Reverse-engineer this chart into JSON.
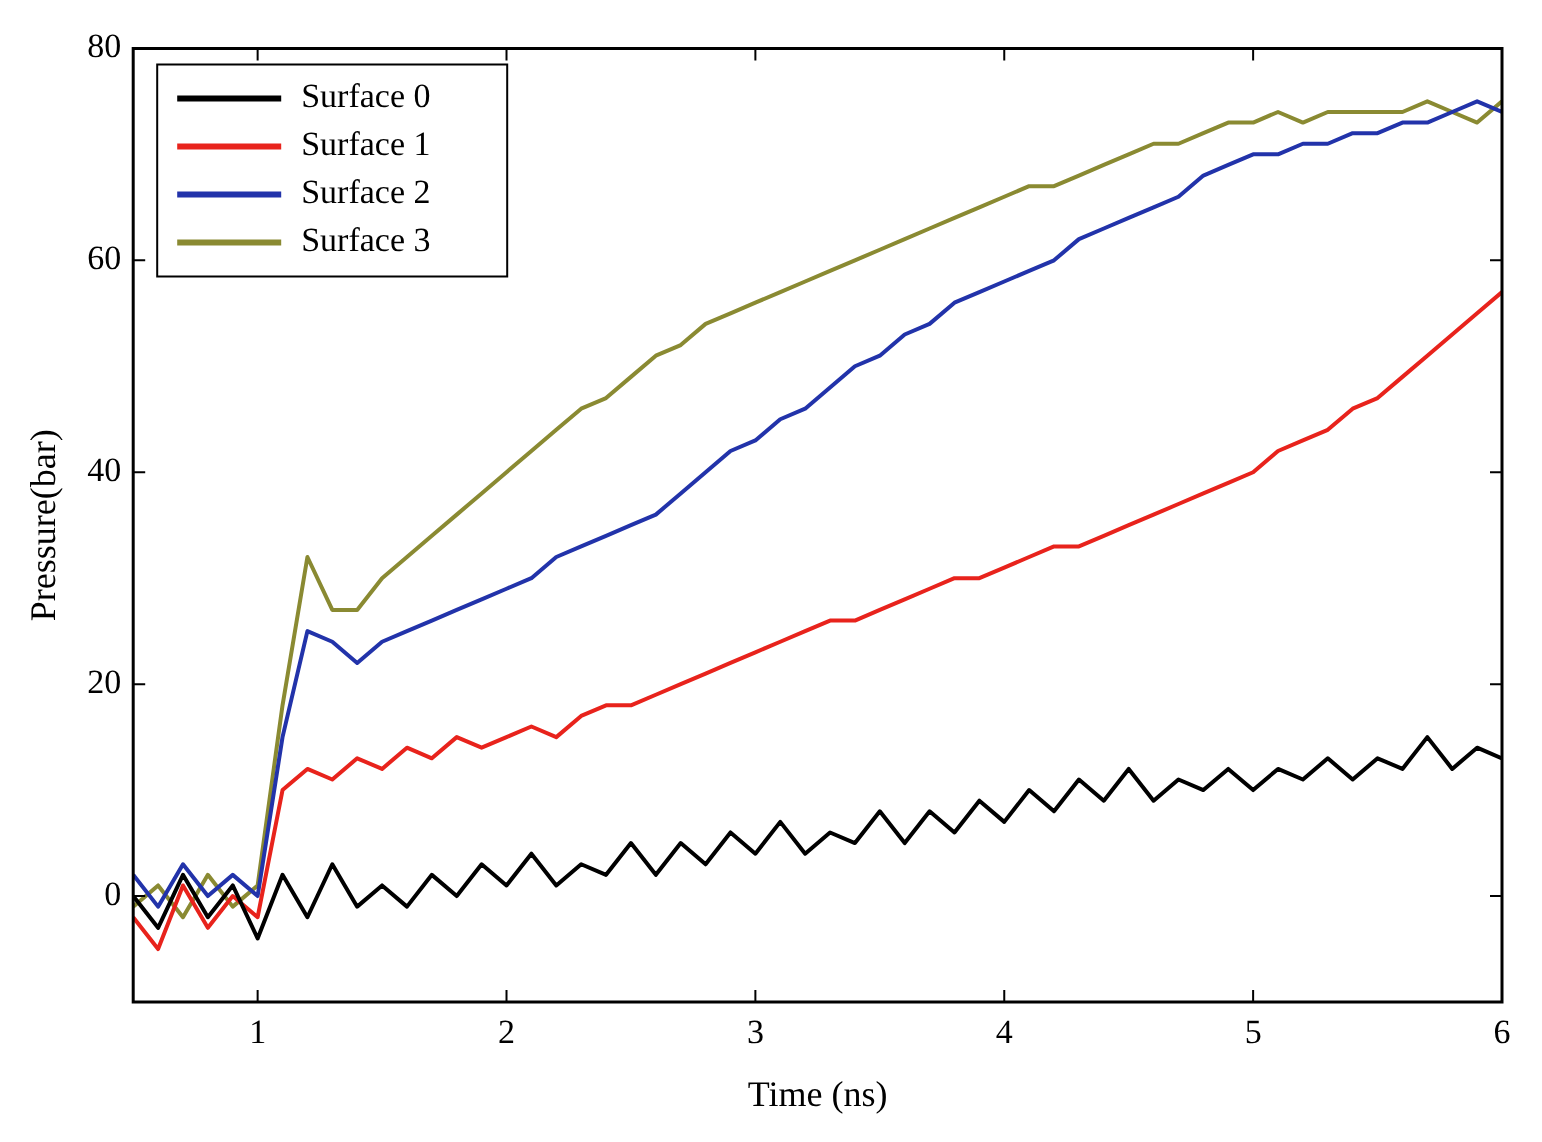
{
  "chart_data": {
    "type": "line",
    "xlabel": "Time (ns)",
    "ylabel": "Pressure(bar)",
    "x": [
      0.5,
      0.6,
      0.7,
      0.8,
      0.9,
      1.0,
      1.1,
      1.2,
      1.3,
      1.4,
      1.5,
      1.6,
      1.7,
      1.8,
      1.9,
      2.0,
      2.1,
      2.2,
      2.3,
      2.4,
      2.5,
      2.6,
      2.7,
      2.8,
      2.9,
      3.0,
      3.1,
      3.2,
      3.3,
      3.4,
      3.5,
      3.6,
      3.7,
      3.8,
      3.9,
      4.0,
      4.1,
      4.2,
      4.3,
      4.4,
      4.5,
      4.6,
      4.7,
      4.8,
      4.9,
      5.0,
      5.1,
      5.2,
      5.3,
      5.4,
      5.5,
      5.6,
      5.7,
      5.8,
      5.9,
      6.0
    ],
    "series": [
      {
        "name": "Surface 0",
        "color": "#000000",
        "values": [
          0,
          -3,
          2,
          -2,
          1,
          -4,
          2,
          -2,
          3,
          -1,
          1,
          -1,
          2,
          0,
          3,
          1,
          4,
          1,
          3,
          2,
          5,
          2,
          5,
          3,
          6,
          4,
          7,
          4,
          6,
          5,
          8,
          5,
          8,
          6,
          9,
          7,
          10,
          8,
          11,
          9,
          12,
          9,
          11,
          10,
          12,
          10,
          12,
          11,
          13,
          11,
          13,
          12,
          15,
          12,
          14,
          13
        ]
      },
      {
        "name": "Surface 1",
        "color": "#e8231c",
        "values": [
          -2,
          -5,
          1,
          -3,
          0,
          -2,
          10,
          12,
          11,
          13,
          12,
          14,
          13,
          15,
          14,
          15,
          16,
          15,
          17,
          18,
          18,
          19,
          20,
          21,
          22,
          23,
          24,
          25,
          26,
          26,
          27,
          28,
          29,
          30,
          30,
          31,
          32,
          33,
          33,
          34,
          35,
          36,
          37,
          38,
          39,
          40,
          42,
          43,
          44,
          46,
          47,
          49,
          51,
          53,
          55,
          57
        ]
      },
      {
        "name": "Surface 2",
        "color": "#2233aa",
        "values": [
          2,
          -1,
          3,
          0,
          2,
          0,
          15,
          25,
          24,
          22,
          24,
          25,
          26,
          27,
          28,
          29,
          30,
          32,
          33,
          34,
          35,
          36,
          38,
          40,
          42,
          43,
          45,
          46,
          48,
          50,
          51,
          53,
          54,
          56,
          57,
          58,
          59,
          60,
          62,
          63,
          64,
          65,
          66,
          68,
          69,
          70,
          70,
          71,
          71,
          72,
          72,
          73,
          73,
          74,
          75,
          74
        ]
      },
      {
        "name": "Surface 3",
        "color": "#8a8a32",
        "values": [
          -1,
          1,
          -2,
          2,
          -1,
          1,
          18,
          32,
          27,
          27,
          30,
          32,
          34,
          36,
          38,
          40,
          42,
          44,
          46,
          47,
          49,
          51,
          52,
          54,
          55,
          56,
          57,
          58,
          59,
          60,
          61,
          62,
          63,
          64,
          65,
          66,
          67,
          67,
          68,
          69,
          70,
          71,
          71,
          72,
          73,
          73,
          74,
          73,
          74,
          74,
          74,
          74,
          75,
          74,
          73,
          75
        ]
      }
    ],
    "xlim": [
      0.5,
      6
    ],
    "xticks": [
      1,
      2,
      3,
      4,
      5,
      6
    ],
    "ylim": [
      -10,
      80
    ],
    "yticks": [
      0,
      20,
      40,
      60,
      80
    ],
    "grid": false,
    "legend": "top left",
    "marker": "none",
    "line_style": "solid"
  }
}
